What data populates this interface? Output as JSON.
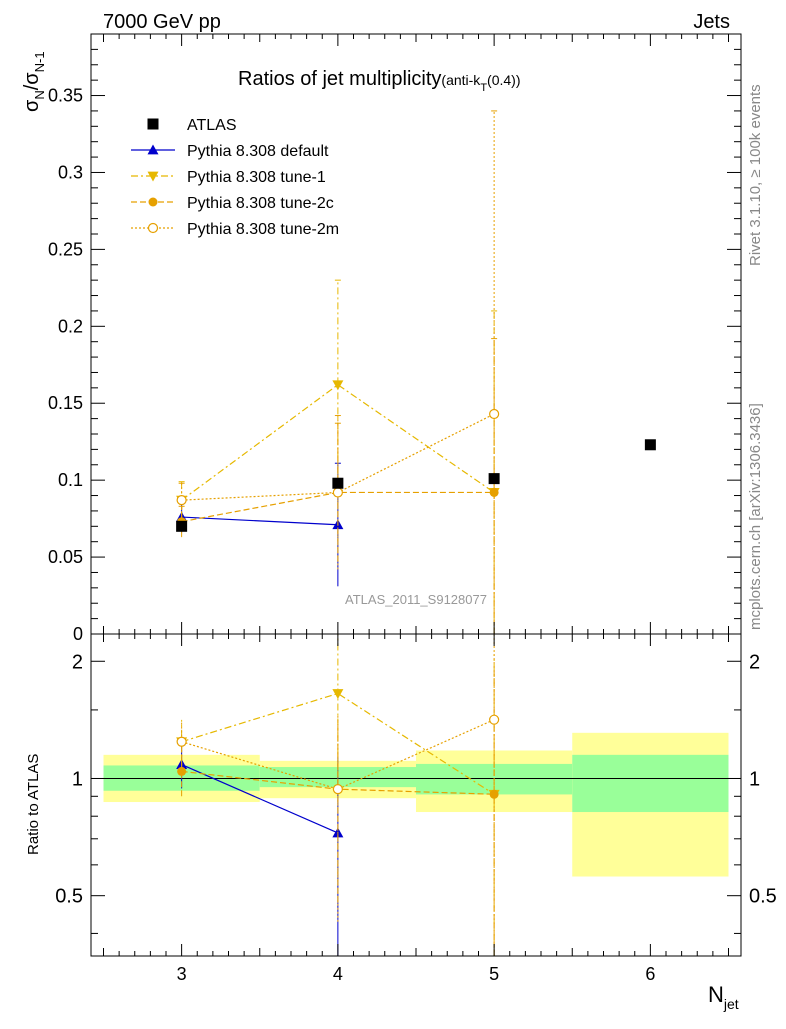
{
  "header": {
    "left": "7000 GeV pp",
    "right": "Jets"
  },
  "side_labels": {
    "rivet": "Rivet 3.1.10, ≥ 100k events",
    "mcplots": "mcplots.cern.ch [arXiv:1306.3436]"
  },
  "chart_data": {
    "type": "scatter",
    "title": "Ratios of jet multiplicity",
    "title_suffix": "(anti-k",
    "title_sub": "T",
    "title_end": "(0.4))",
    "watermark": "ATLAS_2011_S9128077",
    "ylabel_main": "σ",
    "ylabel_sub1": "N",
    "ylabel_mid": "/σ",
    "ylabel_sub2": "N-1",
    "ylabel_ratio": "Ratio to ATLAS",
    "xlabel": "N",
    "xlabel_sub": "jet",
    "xlim": [
      2.42,
      6.58
    ],
    "ylim_main": [
      0,
      0.39
    ],
    "ylim_ratio": [
      0.35,
      2.35
    ],
    "ratio_log": true,
    "x_ticks": [
      3,
      4,
      5,
      6
    ],
    "y_ticks_main": [
      0,
      0.05,
      0.1,
      0.15,
      0.2,
      0.25,
      0.3,
      0.35
    ],
    "y_tick_labels_main": [
      "0",
      "0.05",
      "0.1",
      "0.15",
      "0.2",
      "0.25",
      "0.3",
      "0.35"
    ],
    "y_ticks_ratio": [
      0.5,
      1,
      2
    ],
    "y_tick_labels_ratio": [
      "0.5",
      "1",
      "2"
    ],
    "data": {
      "name": "ATLAS",
      "color": "#000000",
      "x": [
        3,
        4,
        5,
        6
      ],
      "y": [
        0.07,
        0.098,
        0.101,
        0.123
      ],
      "bins": [
        [
          2.5,
          3.5
        ],
        [
          3.5,
          4.5
        ],
        [
          4.5,
          5.5
        ],
        [
          5.5,
          6.5
        ]
      ],
      "band_inner": [
        [
          0.93,
          1.08
        ],
        [
          0.95,
          1.07
        ],
        [
          0.91,
          1.09
        ],
        [
          0.82,
          1.15
        ]
      ],
      "band_outer": [
        [
          0.87,
          1.15
        ],
        [
          0.89,
          1.11
        ],
        [
          0.82,
          1.18
        ],
        [
          0.56,
          1.31
        ]
      ]
    },
    "series": [
      {
        "name": "Pythia 8.308 default",
        "color": "#0000cc",
        "marker": "triangle-up",
        "dash": "",
        "x": [
          3,
          4
        ],
        "y": [
          0.076,
          0.071
        ],
        "err": [
          0.01,
          0.04
        ]
      },
      {
        "name": "Pythia 8.308 tune-1",
        "color": "#e6b800",
        "marker": "triangle-down",
        "dash": "7,3,2,3",
        "x": [
          3,
          4,
          5
        ],
        "y": [
          0.087,
          0.162,
          0.092
        ],
        "err": [
          0.012,
          0.068,
          0.118
        ]
      },
      {
        "name": "Pythia 8.308 tune-2c",
        "color": "#e6a000",
        "marker": "circle",
        "dash": "6,3",
        "x": [
          3,
          4,
          5
        ],
        "y": [
          0.073,
          0.092,
          0.092
        ],
        "err": [
          0.01,
          0.045,
          0.1
        ]
      },
      {
        "name": "Pythia 8.308 tune-2m",
        "color": "#e6a000",
        "marker": "open-circle",
        "dash": "2,2",
        "x": [
          3,
          4,
          5
        ],
        "y": [
          0.087,
          0.092,
          0.143
        ],
        "err": [
          0.011,
          0.05,
          0.197
        ]
      }
    ]
  }
}
